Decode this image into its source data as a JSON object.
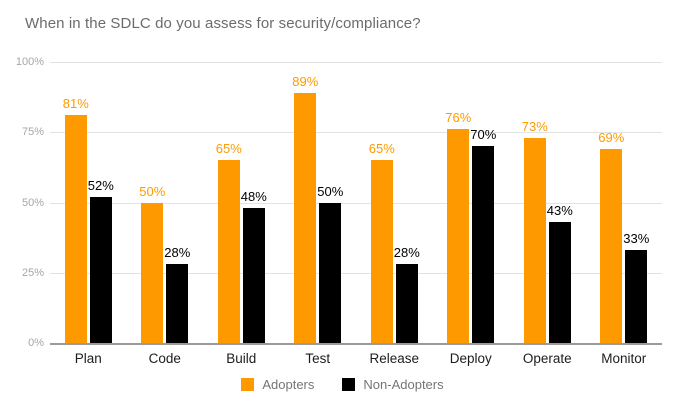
{
  "chart_data": {
    "type": "bar",
    "title": "When in the SDLC do you assess for security/compliance?",
    "categories": [
      "Plan",
      "Code",
      "Build",
      "Test",
      "Release",
      "Deploy",
      "Operate",
      "Monitor"
    ],
    "series": [
      {
        "name": "Adopters",
        "color": "#ff9900",
        "values": [
          81,
          50,
          65,
          89,
          65,
          76,
          73,
          69
        ]
      },
      {
        "name": "Non-Adopters",
        "color": "#000000",
        "values": [
          52,
          28,
          48,
          50,
          28,
          70,
          43,
          33
        ]
      }
    ],
    "xlabel": "",
    "ylabel": "",
    "ylim": [
      0,
      100
    ],
    "yticks": [
      {
        "value": 0,
        "label": "0%"
      },
      {
        "value": 25,
        "label": "25%"
      },
      {
        "value": 50,
        "label": "50%"
      },
      {
        "value": 75,
        "label": "75%"
      },
      {
        "value": 100,
        "label": "100%"
      }
    ],
    "data_label_suffix": "%",
    "grid": true,
    "legend_position": "bottom"
  },
  "colors": {
    "background": "#ffffff",
    "title_text": "#6b6b6b",
    "gridline": "#e3e3e3",
    "axis_baseline": "#9a9a9a",
    "y_tick_text": "#a6a6a6",
    "x_tick_text": "#1d1d1d",
    "legend_text": "#757575"
  }
}
